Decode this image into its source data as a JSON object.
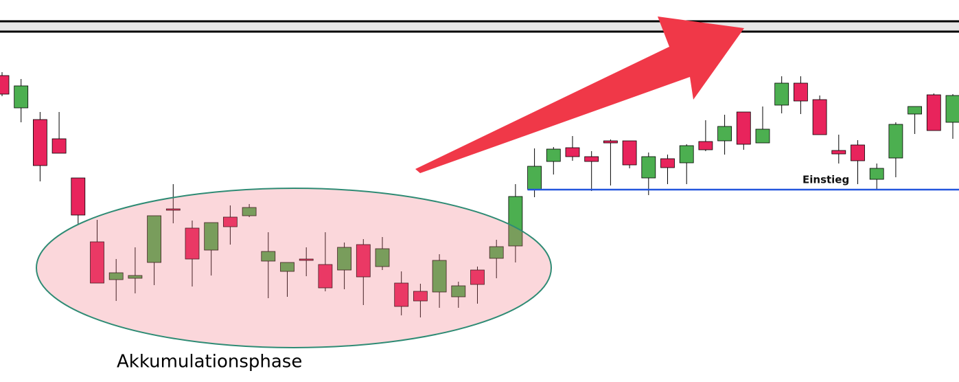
{
  "chart_data": {
    "type": "candlestick",
    "open": [
      446,
      399,
      382,
      354,
      297,
      204,
      149,
      151,
      174,
      252,
      224,
      192,
      240,
      242,
      176,
      161,
      179,
      171,
      163,
      200,
      168,
      144,
      132,
      131,
      124,
      163,
      180,
      198,
      280,
      321,
      341,
      328,
      351,
      351,
      297,
      325,
      319,
      350,
      351,
      393,
      348,
      403,
      435,
      411,
      337,
      345,
      295,
      326,
      390,
      418,
      378
    ],
    "high": [
      451,
      441,
      393,
      393,
      297,
      236,
      179,
      196,
      242,
      288,
      235,
      232,
      257,
      259,
      218,
      174,
      196,
      218,
      203,
      208,
      211,
      161,
      143,
      186,
      146,
      168,
      207,
      288,
      340,
      342,
      358,
      336,
      353,
      351,
      334,
      331,
      346,
      381,
      389,
      393,
      401,
      445,
      445,
      417,
      360,
      352,
      318,
      378,
      401,
      420,
      419
    ],
    "low": [
      416,
      378,
      292,
      333,
      229,
      144,
      118,
      129,
      141,
      231,
      139,
      155,
      200,
      240,
      122,
      124,
      154,
      132,
      135,
      112,
      163,
      97,
      94,
      108,
      108,
      114,
      151,
      174,
      269,
      302,
      322,
      278,
      286,
      311,
      272,
      288,
      288,
      336,
      331,
      338,
      348,
      391,
      390,
      360,
      318,
      288,
      280,
      298,
      361,
      366,
      354
    ],
    "close": [
      419,
      431,
      315,
      333,
      243,
      144,
      159,
      155,
      242,
      250,
      179,
      232,
      226,
      254,
      190,
      174,
      177,
      137,
      196,
      153,
      194,
      110,
      118,
      177,
      140,
      142,
      197,
      270,
      314,
      339,
      328,
      321,
      348,
      316,
      328,
      312,
      344,
      338,
      372,
      346,
      368,
      435,
      409,
      360,
      332,
      322,
      311,
      375,
      401,
      366,
      417
    ],
    "up_color": "#4caf50",
    "down_color": "#e8245c",
    "ylim": [
      0,
      556
    ],
    "entry_level": 280,
    "annotations": {
      "accumulation": "Akkumulationsphase",
      "entry": "Einstieg"
    }
  }
}
